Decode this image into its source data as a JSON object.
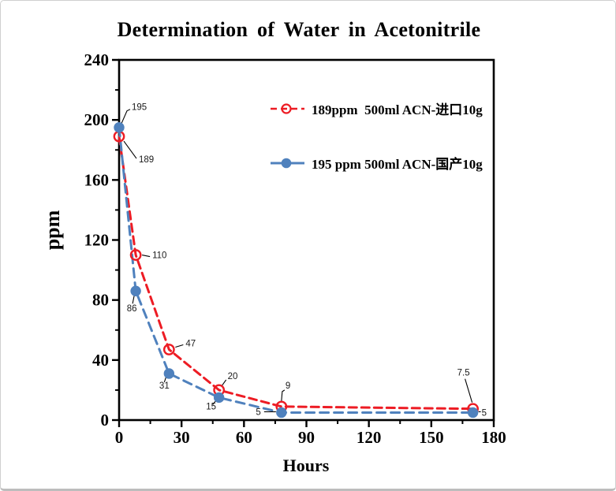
{
  "card": {
    "background": "#ffffff",
    "border_color": "#cfcfcf"
  },
  "chart_data": {
    "type": "line",
    "title": "Determination of Water in Acetonitrile",
    "xlabel": "Hours",
    "ylabel": "ppm",
    "xlim": [
      0,
      180
    ],
    "ylim": [
      0,
      240
    ],
    "x_major_ticks": [
      0,
      30,
      60,
      90,
      120,
      150,
      180
    ],
    "x_minor_ticks": [
      15,
      45,
      75,
      105,
      135,
      165
    ],
    "y_major_ticks": [
      0,
      40,
      80,
      120,
      160,
      200,
      240
    ],
    "y_minor_ticks": [
      20,
      60,
      100,
      140,
      180,
      220
    ],
    "grid": false,
    "legend_position": "inside-top-right",
    "axis_color": "#000000",
    "label_color": "#1a1a1a",
    "series": [
      {
        "name": "189ppm  500ml ACN-进口10g",
        "color": "#ed1c24",
        "marker": "open-circle",
        "line_style": "dashed",
        "x": [
          0,
          8,
          24,
          48,
          78,
          170
        ],
        "y": [
          189,
          110,
          47,
          20,
          9,
          7.5
        ],
        "point_labels": [
          "189",
          "110",
          "47",
          "20",
          "9",
          "7.5"
        ]
      },
      {
        "name": "195 ppm 500ml ACN-国产10g",
        "color": "#4f81bd",
        "marker": "filled-circle",
        "line_style": "dashed",
        "x": [
          0,
          8,
          24,
          48,
          78,
          170
        ],
        "y": [
          195,
          86,
          31,
          15,
          5,
          5
        ],
        "point_labels": [
          "195",
          "86",
          "31",
          "15",
          "5",
          "5"
        ]
      }
    ]
  }
}
